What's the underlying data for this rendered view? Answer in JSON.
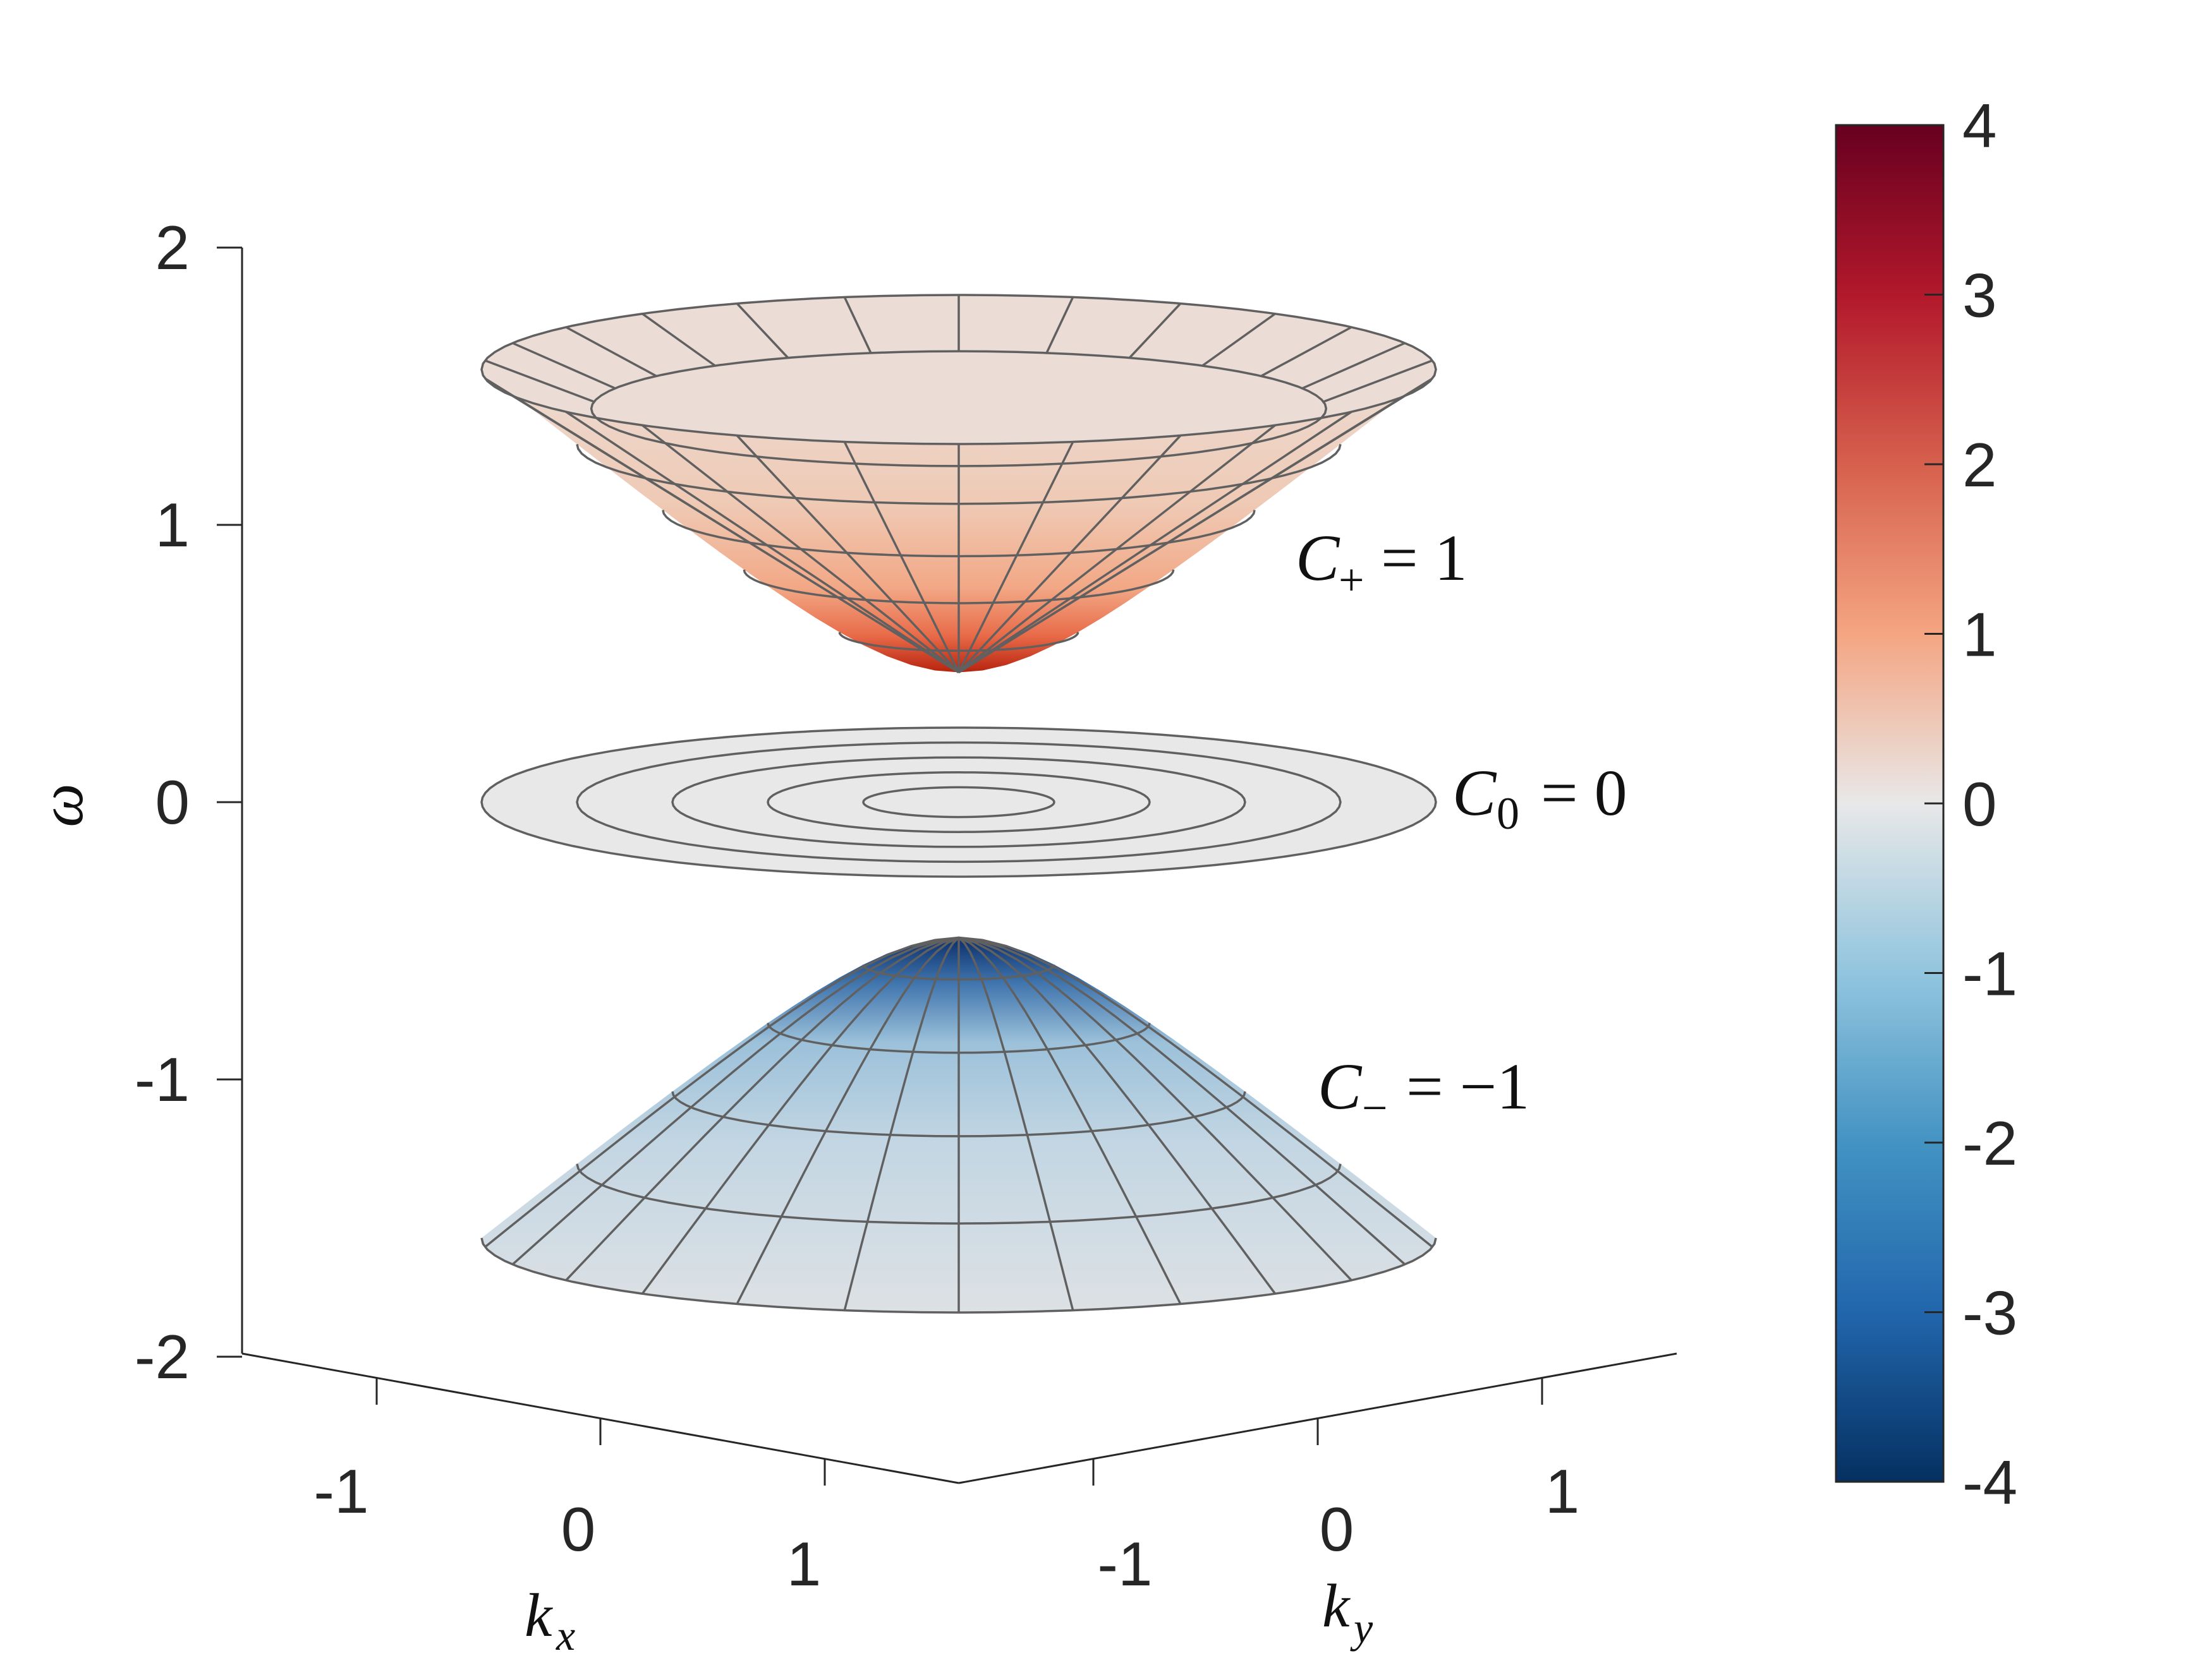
{
  "chart_data": {
    "type": "surface3d",
    "title": "",
    "axes": {
      "kx": {
        "label": "k",
        "sub": "x",
        "ticks": [
          "-1",
          "0",
          "1"
        ],
        "range": [
          -1.5,
          1.5
        ]
      },
      "ky": {
        "label": "k",
        "sub": "y",
        "ticks": [
          "-1",
          "0",
          "1"
        ],
        "range": [
          -1.5,
          1.5
        ]
      },
      "omega": {
        "label": "ω",
        "ticks": [
          "-2",
          "-1",
          "0",
          "1",
          "2"
        ],
        "range": [
          -2,
          2
        ]
      }
    },
    "bands": [
      {
        "name": "upper",
        "label_main": "C",
        "label_sub": "+",
        "label_rest": "= 1",
        "center_omega": 0.5,
        "rim_omega": 1.58,
        "curvature_max": 4
      },
      {
        "name": "flat",
        "label_main": "C",
        "label_sub": "0",
        "label_rest": "= 0",
        "center_omega": 0,
        "rim_omega": 0,
        "curvature_max": 0
      },
      {
        "name": "lower",
        "label_main": "C",
        "label_sub": "−",
        "label_rest": "= −1",
        "center_omega": -0.5,
        "rim_omega": -1.58,
        "curvature_max": -4
      }
    ],
    "colorbar": {
      "ticks": [
        "4",
        "3",
        "2",
        "1",
        "0",
        "-1",
        "-2",
        "-3",
        "-4"
      ],
      "range": [
        -4,
        4
      ],
      "colormap": "diverging red-white-blue",
      "colors": [
        "#053061",
        "#2166ac",
        "#4393c3",
        "#92c5de",
        "#e8e8e8",
        "#f4a582",
        "#d6604d",
        "#b2182b",
        "#67001f"
      ]
    },
    "grid": false
  }
}
